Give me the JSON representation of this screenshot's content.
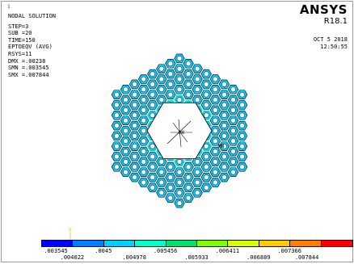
{
  "window_number": "1",
  "header": {
    "title": "NODAL SOLUTION",
    "lines": [
      "STEP=3",
      "SUB =20",
      "TIME=150",
      "EPTOEQV  (AVG)",
      "RSYS=11",
      "DMX =.00238",
      "SMN =.003545",
      "SMX =.007844"
    ]
  },
  "brand": {
    "name": "ANSYS",
    "version": "R18.1"
  },
  "datetime": {
    "date": "OCT  5 2018",
    "time": "12:50:55"
  },
  "markers": {
    "mx": "MX",
    "mn": "MN",
    "axis_y": "Y"
  },
  "legend": {
    "colors": [
      "#0000ff",
      "#0080ff",
      "#00d0ff",
      "#00ffcc",
      "#00e070",
      "#7fff00",
      "#d8ff00",
      "#ffcc00",
      "#ff7f00",
      "#ff0000"
    ],
    "labels_top": [
      ".003545",
      ".0045",
      ".005456",
      ".006411",
      ".007366"
    ],
    "labels_bottom": [
      ".004022",
      ".004978",
      ".005933",
      ".006889",
      ".007844"
    ]
  },
  "model": {
    "fill_color": "#00ccff",
    "core_color": "#ffffff",
    "edge_color": "#000000",
    "highlight_color": "#00e070"
  }
}
